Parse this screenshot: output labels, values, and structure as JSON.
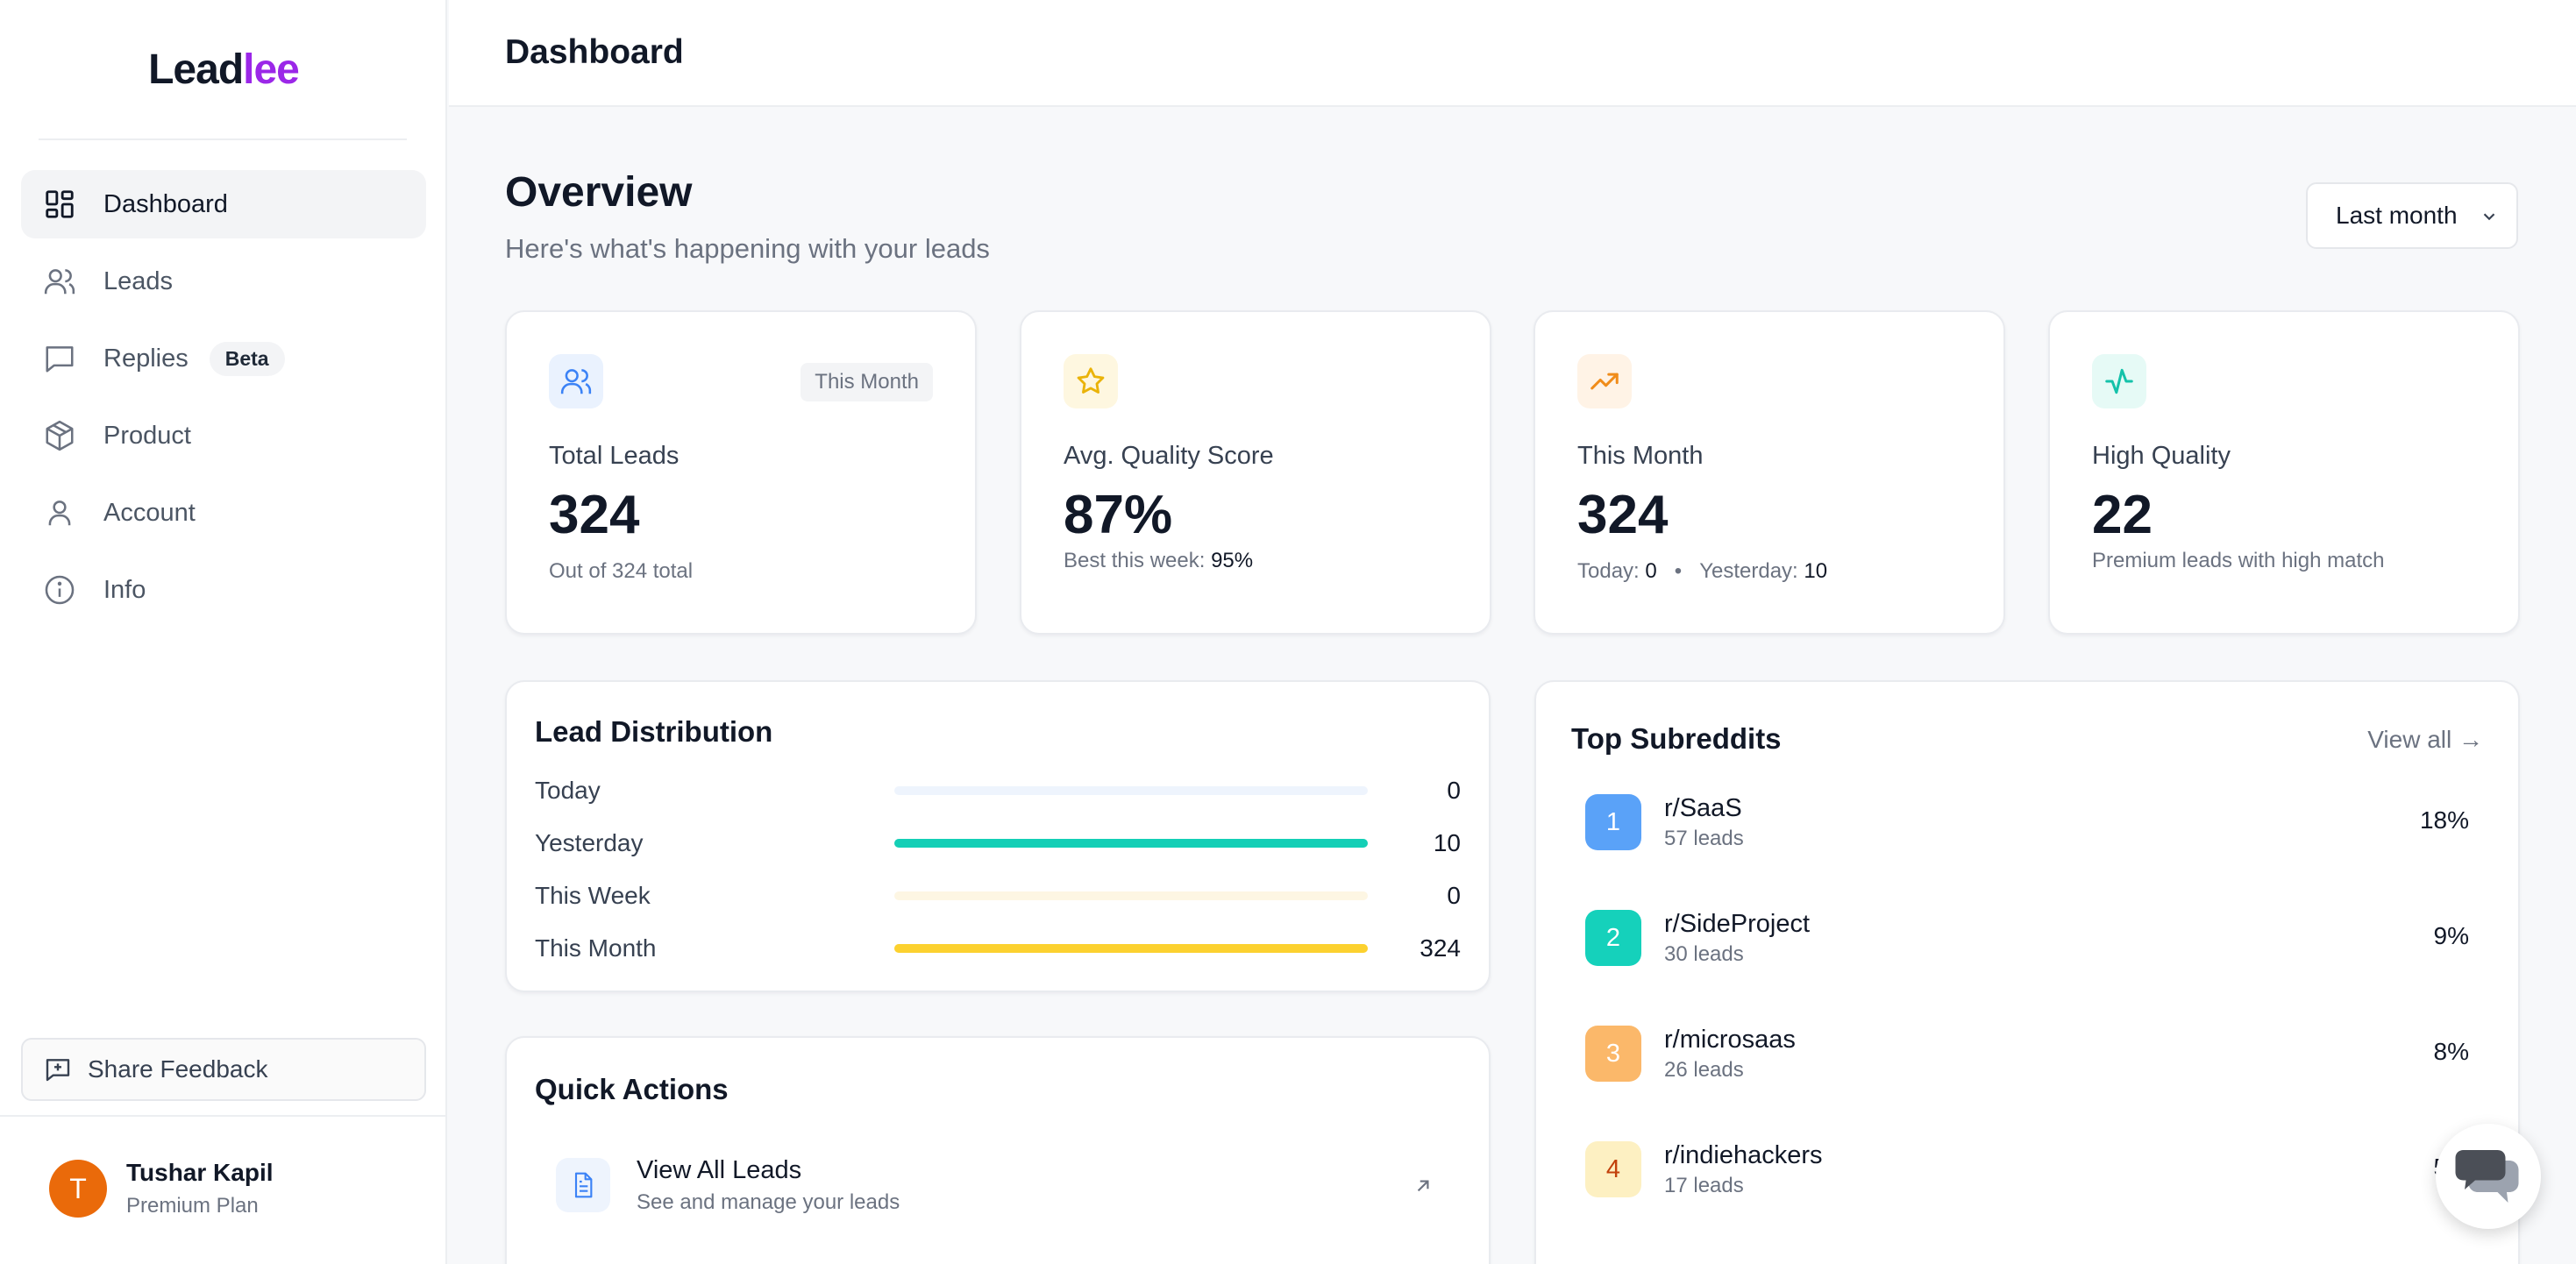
{
  "brand": {
    "part1": "Lead",
    "part2": "lee"
  },
  "sidebar": {
    "items": [
      {
        "label": "Dashboard",
        "icon": "grid-icon"
      },
      {
        "label": "Leads",
        "icon": "users-icon"
      },
      {
        "label": "Replies",
        "icon": "chat-bubble-icon",
        "badge": "Beta"
      },
      {
        "label": "Product",
        "icon": "package-icon"
      },
      {
        "label": "Account",
        "icon": "user-icon"
      },
      {
        "label": "Info",
        "icon": "info-icon"
      }
    ],
    "feedback_label": "Share Feedback"
  },
  "user": {
    "initial": "T",
    "name": "Tushar Kapil",
    "plan": "Premium Plan"
  },
  "header": {
    "title": "Dashboard"
  },
  "overview": {
    "title": "Overview",
    "subtitle": "Here's what's happening with your leads",
    "period": "Last month"
  },
  "stats": [
    {
      "label": "Total Leads",
      "value": "324",
      "tag": "This Month",
      "sub": "Out of 324 total"
    },
    {
      "label": "Avg. Quality Score",
      "value": "87%",
      "sub_prefix": "Best this week: ",
      "sub_value": "95%"
    },
    {
      "label": "This Month",
      "value": "324",
      "today_label": "Today: ",
      "today_value": "0",
      "sep": "•",
      "yesterday_label": "Yesterday: ",
      "yesterday_value": "10"
    },
    {
      "label": "High Quality",
      "value": "22",
      "sub": "Premium leads with high match"
    }
  ],
  "distribution": {
    "title": "Lead Distribution",
    "rows": [
      {
        "label": "Today",
        "value": "0",
        "fill": 0,
        "track": "#eef4fd",
        "color": "#60a5fa"
      },
      {
        "label": "Yesterday",
        "value": "10",
        "fill": 1,
        "track": "#e0f7f3",
        "color": "#14cfb6"
      },
      {
        "label": "This Week",
        "value": "0",
        "fill": 0,
        "track": "#fdf6e3",
        "color": "#fbbf24"
      },
      {
        "label": "This Month",
        "value": "324",
        "fill": 1,
        "track": "#fef3c7",
        "color": "#fcd12f"
      }
    ]
  },
  "quick_actions": {
    "title": "Quick Actions",
    "items": [
      {
        "title": "View All Leads",
        "subtitle": "See and manage your leads"
      }
    ]
  },
  "subreddits": {
    "title": "Top Subreddits",
    "view_all": "View all →",
    "rows": [
      {
        "rank": "1",
        "name": "r/SaaS",
        "leads": "57 leads",
        "pct": "18%",
        "color": "#5aa2f8",
        "fg": "#ffffff"
      },
      {
        "rank": "2",
        "name": "r/SideProject",
        "leads": "30 leads",
        "pct": "9%",
        "color": "#15d1bb",
        "fg": "#ffffff"
      },
      {
        "rank": "3",
        "name": "r/microsaas",
        "leads": "26 leads",
        "pct": "8%",
        "color": "#fbb86a",
        "fg": "#ffffff"
      },
      {
        "rank": "4",
        "name": "r/indiehackers",
        "leads": "17 leads",
        "pct": "5%",
        "color": "#fdf0c2",
        "fg": "#c2410c"
      }
    ]
  }
}
